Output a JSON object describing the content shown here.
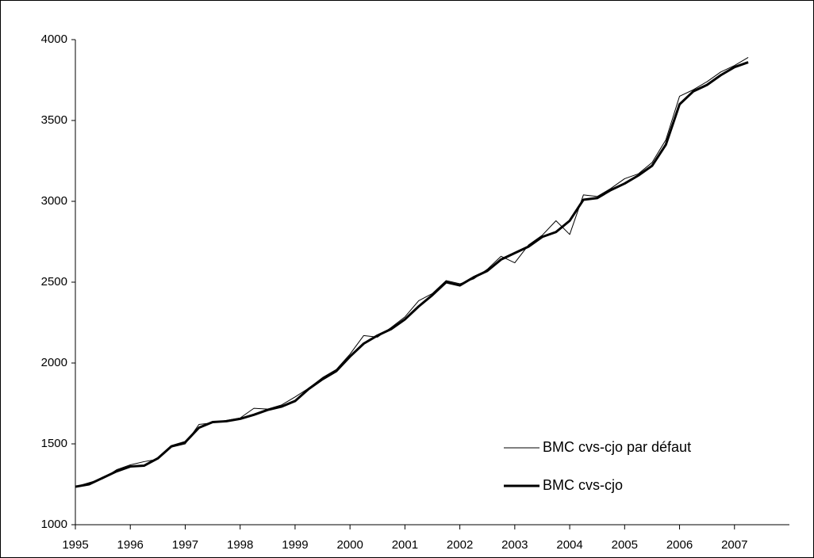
{
  "chart_data": {
    "type": "line",
    "x": [
      1995.0,
      1995.25,
      1995.5,
      1995.75,
      1996.0,
      1996.25,
      1996.5,
      1996.75,
      1997.0,
      1997.25,
      1997.5,
      1997.75,
      1998.0,
      1998.25,
      1998.5,
      1998.75,
      1999.0,
      1999.25,
      1999.5,
      1999.75,
      2000.0,
      2000.25,
      2000.5,
      2000.75,
      2001.0,
      2001.25,
      2001.5,
      2001.75,
      2002.0,
      2002.25,
      2002.5,
      2002.75,
      2003.0,
      2003.25,
      2003.5,
      2003.75,
      2004.0,
      2004.25,
      2004.5,
      2004.75,
      2005.0,
      2005.25,
      2005.5,
      2005.75,
      2006.0,
      2006.25,
      2006.5,
      2006.75,
      2007.0,
      2007.25
    ],
    "series": [
      {
        "name": "BMC cvs-cjo par défaut",
        "color": "#000000",
        "width": 1,
        "values": [
          1235,
          1260,
          1285,
          1340,
          1370,
          1390,
          1405,
          1480,
          1500,
          1620,
          1630,
          1645,
          1660,
          1720,
          1715,
          1740,
          1790,
          1845,
          1910,
          1960,
          2055,
          2170,
          2160,
          2220,
          2285,
          2385,
          2430,
          2510,
          2490,
          2520,
          2580,
          2660,
          2620,
          2730,
          2790,
          2880,
          2795,
          3040,
          3030,
          3080,
          3140,
          3170,
          3240,
          3380,
          3650,
          3690,
          3740,
          3800,
          3840,
          3890
        ]
      },
      {
        "name": "BMC cvs-cjo",
        "color": "#000000",
        "width": 3,
        "values": [
          1235,
          1250,
          1290,
          1330,
          1360,
          1365,
          1410,
          1485,
          1510,
          1600,
          1635,
          1640,
          1655,
          1680,
          1710,
          1730,
          1765,
          1840,
          1900,
          1950,
          2040,
          2120,
          2170,
          2210,
          2270,
          2350,
          2420,
          2500,
          2480,
          2530,
          2570,
          2640,
          2680,
          2720,
          2780,
          2810,
          2880,
          3010,
          3020,
          3070,
          3110,
          3160,
          3220,
          3350,
          3600,
          3680,
          3720,
          3780,
          3830,
          3860
        ]
      }
    ],
    "xlim": [
      1995,
      2008
    ],
    "xticks": [
      1995,
      1996,
      1997,
      1998,
      1999,
      2000,
      2001,
      2002,
      2003,
      2004,
      2005,
      2006,
      2007
    ],
    "ylim": [
      1000,
      4000
    ],
    "yticks": [
      1000,
      1500,
      2000,
      2500,
      3000,
      3500,
      4000
    ],
    "legend": "lower right"
  }
}
